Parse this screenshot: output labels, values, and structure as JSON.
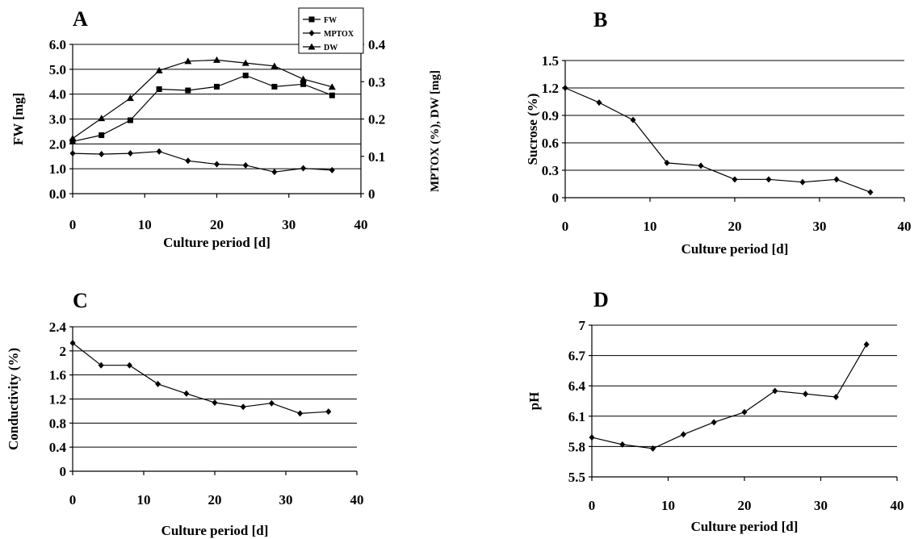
{
  "chart_data": [
    {
      "panel": "A",
      "type": "line",
      "xlabel": "Culture period [d]",
      "ylabel": "FW [mg]",
      "y2label": "MPTOX (%), DW [mg]",
      "xlim": [
        0,
        40
      ],
      "xticks": [
        "0",
        "10",
        "20",
        "30",
        "40"
      ],
      "ylim": [
        0,
        6
      ],
      "yticks": [
        "0.0",
        "1.0",
        "2.0",
        "3.0",
        "4.0",
        "5.0",
        "6.0"
      ],
      "y2lim": [
        0,
        0.4
      ],
      "y2ticks": [
        "0",
        "0.1",
        "0.2",
        "0.3",
        "0.4"
      ],
      "grid": true,
      "legend_position": "top-right",
      "x": [
        0,
        4,
        8,
        12,
        16,
        20,
        24,
        28,
        32,
        36
      ],
      "series": [
        {
          "name": "FW",
          "axis": "left",
          "marker": "square",
          "values": [
            2.1,
            2.35,
            2.95,
            4.2,
            4.15,
            4.3,
            4.75,
            4.3,
            4.4,
            3.95
          ]
        },
        {
          "name": "MPTOX",
          "axis": "right",
          "marker": "diamond",
          "values": [
            0.108,
            0.106,
            0.108,
            0.113,
            0.088,
            0.079,
            0.076,
            0.058,
            0.068,
            0.063
          ]
        },
        {
          "name": "DW",
          "axis": "right",
          "marker": "triangle",
          "values": [
            0.148,
            0.202,
            0.256,
            0.33,
            0.355,
            0.358,
            0.35,
            0.342,
            0.307,
            0.286
          ]
        }
      ]
    },
    {
      "panel": "B",
      "type": "line",
      "xlabel": "Culture period [d]",
      "ylabel": "Sucrose (%)",
      "xlim": [
        0,
        40
      ],
      "xticks": [
        "0",
        "10",
        "20",
        "30",
        "40"
      ],
      "ylim": [
        0,
        1.5
      ],
      "yticks": [
        "0",
        "0.3",
        "0.6",
        "0.9",
        "1.2",
        "1.5"
      ],
      "grid": true,
      "x": [
        0,
        4,
        8,
        12,
        16,
        20,
        24,
        28,
        32,
        36
      ],
      "series": [
        {
          "marker": "diamond",
          "values": [
            1.2,
            1.04,
            0.85,
            0.38,
            0.35,
            0.2,
            0.2,
            0.17,
            0.2,
            0.06
          ]
        }
      ]
    },
    {
      "panel": "C",
      "type": "line",
      "xlabel": "Culture period [d]",
      "ylabel": "Conductivity (%)",
      "xlim": [
        0,
        40
      ],
      "xticks": [
        "0",
        "10",
        "20",
        "30",
        "40"
      ],
      "ylim": [
        0,
        2.4
      ],
      "yticks": [
        "0",
        "0.4",
        "0.8",
        "1.2",
        "1.6",
        "2",
        "2.4"
      ],
      "grid": true,
      "x": [
        0,
        4,
        8,
        12,
        16,
        20,
        24,
        28,
        32,
        36
      ],
      "series": [
        {
          "marker": "diamond",
          "values": [
            2.13,
            1.76,
            1.76,
            1.45,
            1.29,
            1.14,
            1.07,
            1.13,
            0.96,
            0.99
          ]
        }
      ]
    },
    {
      "panel": "D",
      "type": "line",
      "xlabel": "Culture period [d]",
      "ylabel": "pH",
      "xlim": [
        0,
        40
      ],
      "xticks": [
        "0",
        "10",
        "20",
        "30",
        "40"
      ],
      "ylim": [
        5.5,
        7
      ],
      "yticks": [
        "5.5",
        "5.8",
        "6.1",
        "6.4",
        "6.7",
        "7"
      ],
      "grid": true,
      "x": [
        0,
        4,
        8,
        12,
        16,
        20,
        24,
        28,
        32,
        36
      ],
      "series": [
        {
          "marker": "diamond",
          "values": [
            5.89,
            5.82,
            5.78,
            5.92,
            6.04,
            6.14,
            6.35,
            6.32,
            6.29,
            6.81
          ]
        }
      ]
    }
  ]
}
